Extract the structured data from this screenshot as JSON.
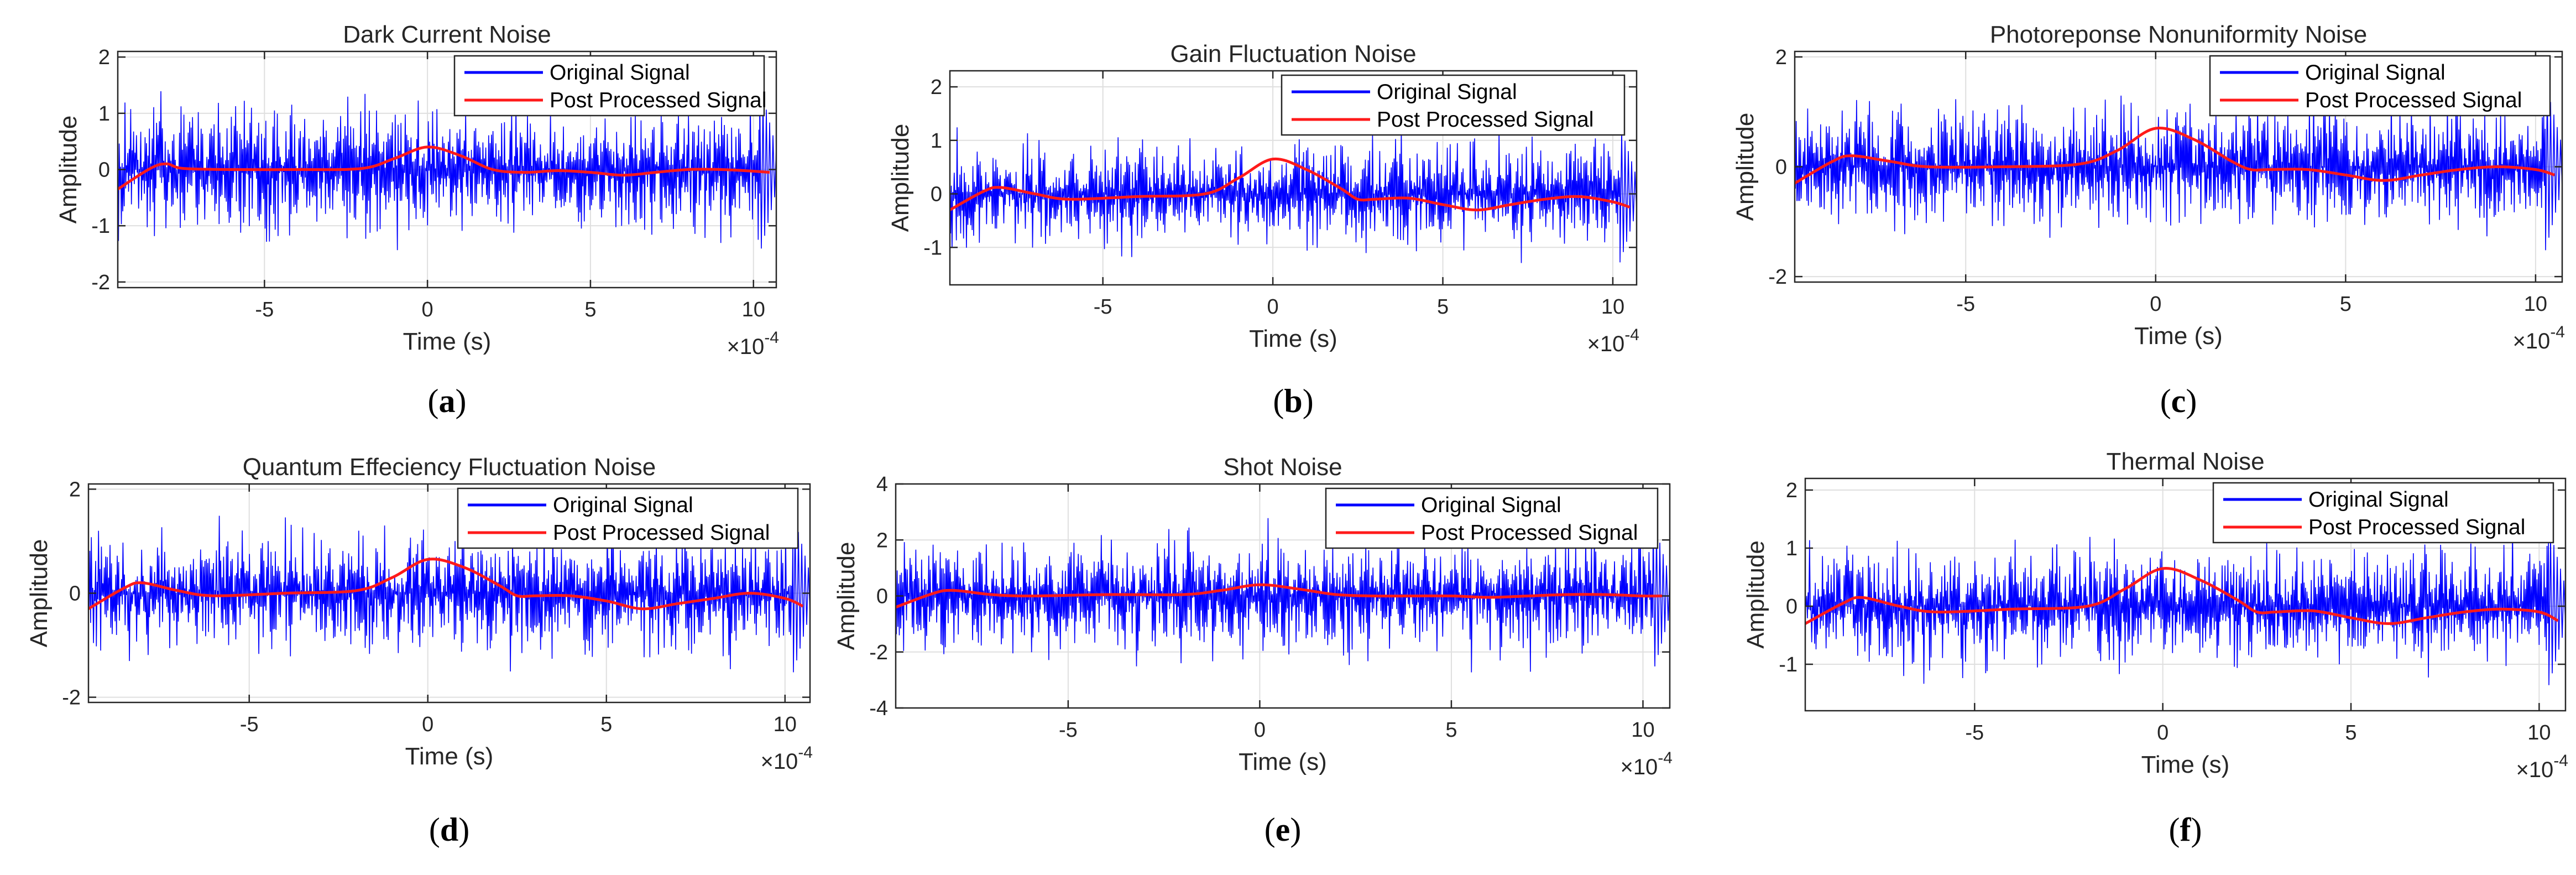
{
  "colors": {
    "original": "#0000ff",
    "processed": "#ff1a1a",
    "axis": "#262626",
    "grid": "#dfdfdf"
  },
  "chart_data": [
    {
      "type": "line",
      "panel": "a",
      "title": "Dark Current Noise",
      "xlabel": "Time (s)",
      "ylabel": "Amplitude",
      "x_exponent": "×10^-4",
      "xlim": [
        -9.5,
        10.7
      ],
      "ylim": [
        -2.1,
        2.1
      ],
      "xticks": [
        -5,
        0,
        5,
        10
      ],
      "yticks": [
        -2,
        -1,
        0,
        1,
        2
      ],
      "noise_amplitude": 1.9,
      "legend": [
        "Original Signal",
        "Post Processed Signal"
      ],
      "series": [
        {
          "name": "Original Signal",
          "description": "dense noise, amplitude about ±1.5, peaks ±2"
        },
        {
          "name": "Post Processed Signal",
          "x": [
            -9.5,
            -8.5,
            -8,
            -7.5,
            -6,
            -4,
            -2,
            -1,
            0,
            1,
            2,
            3,
            4,
            5,
            6,
            7,
            8,
            9,
            10,
            10.5
          ],
          "y": [
            -0.35,
            0.02,
            0.1,
            0.02,
            0.0,
            0.0,
            0.02,
            0.2,
            0.4,
            0.25,
            0.0,
            -0.05,
            -0.02,
            -0.05,
            -0.1,
            -0.05,
            0.0,
            0.0,
            -0.03,
            -0.05
          ]
        }
      ]
    },
    {
      "type": "line",
      "panel": "b",
      "title": "Gain Fluctuation Noise",
      "xlabel": "Time (s)",
      "ylabel": "Amplitude",
      "x_exponent": "×10^-4",
      "xlim": [
        -9.5,
        10.7
      ],
      "ylim": [
        -1.7,
        2.3
      ],
      "xticks": [
        -5,
        0,
        5,
        10
      ],
      "yticks": [
        -1,
        0,
        1,
        2
      ],
      "noise_amplitude": 1.6,
      "legend": [
        "Original Signal",
        "Post Processed Signal"
      ],
      "series": [
        {
          "name": "Original Signal",
          "description": "dense noise, amplitude about ±1.3, peaks ±2"
        },
        {
          "name": "Post Processed Signal",
          "x": [
            -9.5,
            -8.5,
            -8,
            -7,
            -6,
            -4,
            -2,
            -1,
            0,
            1,
            2,
            2.5,
            3,
            4,
            5,
            6,
            7,
            8,
            9,
            10,
            10.5
          ],
          "y": [
            -0.3,
            0.05,
            0.12,
            0.0,
            -0.1,
            -0.05,
            0.0,
            0.3,
            0.65,
            0.45,
            0.1,
            -0.1,
            -0.1,
            -0.08,
            -0.2,
            -0.3,
            -0.2,
            -0.1,
            -0.05,
            -0.15,
            -0.25
          ]
        }
      ]
    },
    {
      "type": "line",
      "panel": "c",
      "title": "Photoreponse Nonuniformity Noise",
      "xlabel": "Time (s)",
      "ylabel": "Amplitude",
      "x_exponent": "×10^-4",
      "xlim": [
        -9.5,
        10.7
      ],
      "ylim": [
        -2.1,
        2.1
      ],
      "xticks": [
        -5,
        0,
        5,
        10
      ],
      "yticks": [
        -2,
        0,
        2
      ],
      "noise_amplitude": 1.9,
      "legend": [
        "Original Signal",
        "Post Processed Signal"
      ],
      "series": [
        {
          "name": "Original Signal",
          "description": "dense noise, amplitude about ±1.5, peaks ±2"
        },
        {
          "name": "Post Processed Signal",
          "x": [
            -9.5,
            -8.5,
            -8,
            -7,
            -6,
            -4,
            -2,
            -1,
            0,
            1,
            2,
            2.5,
            3,
            4,
            5,
            6,
            7,
            8,
            9,
            10,
            10.5
          ],
          "y": [
            -0.3,
            0.1,
            0.2,
            0.1,
            0.0,
            0.0,
            0.05,
            0.3,
            0.7,
            0.5,
            0.1,
            -0.05,
            -0.05,
            -0.05,
            -0.15,
            -0.25,
            -0.15,
            -0.05,
            0.0,
            -0.05,
            -0.15
          ]
        }
      ]
    },
    {
      "type": "line",
      "panel": "d",
      "title": "Quantum Effeciency Fluctuation Noise",
      "xlabel": "Time (s)",
      "ylabel": "Amplitude",
      "x_exponent": "×10^-4",
      "xlim": [
        -9.5,
        10.7
      ],
      "ylim": [
        -2.1,
        2.1
      ],
      "xticks": [
        -5,
        0,
        5,
        10
      ],
      "yticks": [
        -2,
        0,
        2
      ],
      "noise_amplitude": 1.9,
      "legend": [
        "Original Signal",
        "Post Processed Signal"
      ],
      "series": [
        {
          "name": "Original Signal",
          "description": "dense noise, amplitude about ±1.5, peaks ±2"
        },
        {
          "name": "Post Processed Signal",
          "x": [
            -9.5,
            -8.5,
            -8,
            -7,
            -6,
            -4,
            -2,
            -1,
            0,
            1,
            2,
            2.5,
            3,
            4,
            5,
            6,
            7,
            8,
            9,
            10,
            10.5
          ],
          "y": [
            -0.3,
            0.1,
            0.2,
            0.05,
            -0.05,
            0.0,
            0.05,
            0.3,
            0.65,
            0.5,
            0.15,
            -0.05,
            -0.05,
            -0.05,
            -0.15,
            -0.3,
            -0.2,
            -0.1,
            0.0,
            -0.1,
            -0.25
          ]
        }
      ]
    },
    {
      "type": "line",
      "panel": "e",
      "title": "Shot Noise",
      "xlabel": "Time (s)",
      "ylabel": "Amplitude",
      "x_exponent": "×10^-4",
      "xlim": [
        -9.5,
        10.7
      ],
      "ylim": [
        -4.0,
        4.0
      ],
      "xticks": [
        -5,
        0,
        5,
        10
      ],
      "yticks": [
        -4,
        -2,
        0,
        2,
        4
      ],
      "noise_amplitude": 3.4,
      "legend": [
        "Original Signal",
        "Post Processed Signal"
      ],
      "series": [
        {
          "name": "Original Signal",
          "description": "dense noise, amplitude about ±2.5, peaks ±3.5"
        },
        {
          "name": "Post Processed Signal",
          "x": [
            -9.5,
            -8.5,
            -8,
            -7,
            -6,
            -4,
            -2,
            -1,
            0,
            1,
            2,
            3,
            4,
            5,
            6,
            7,
            8,
            9,
            10,
            10.5
          ],
          "y": [
            -0.4,
            0.1,
            0.2,
            0.05,
            0.0,
            0.05,
            0.05,
            0.2,
            0.4,
            0.25,
            0.05,
            0.0,
            0.0,
            0.0,
            -0.05,
            0.0,
            0.05,
            0.05,
            0.0,
            0.0
          ]
        }
      ]
    },
    {
      "type": "line",
      "panel": "f",
      "title": "Thermal Noise",
      "xlabel": "Time (s)",
      "ylabel": "Amplitude",
      "x_exponent": "×10^-4",
      "xlim": [
        -9.5,
        10.7
      ],
      "ylim": [
        -1.8,
        2.2
      ],
      "xticks": [
        -5,
        0,
        5,
        10
      ],
      "yticks": [
        -1,
        0,
        1,
        2
      ],
      "noise_amplitude": 1.7,
      "legend": [
        "Original Signal",
        "Post Processed Signal"
      ],
      "series": [
        {
          "name": "Original Signal",
          "description": "dense noise, amplitude about ±1.3, peaks ±2"
        },
        {
          "name": "Post Processed Signal",
          "x": [
            -9.5,
            -8.5,
            -8,
            -7,
            -6,
            -4,
            -2,
            -1,
            0,
            1,
            2,
            2.5,
            3,
            4,
            5,
            6,
            7,
            8,
            9,
            10,
            10.5
          ],
          "y": [
            -0.3,
            0.05,
            0.15,
            0.0,
            -0.1,
            -0.05,
            0.0,
            0.3,
            0.65,
            0.45,
            0.1,
            -0.1,
            -0.1,
            -0.08,
            -0.2,
            -0.3,
            -0.2,
            -0.1,
            -0.05,
            -0.1,
            -0.25
          ]
        }
      ]
    }
  ]
}
